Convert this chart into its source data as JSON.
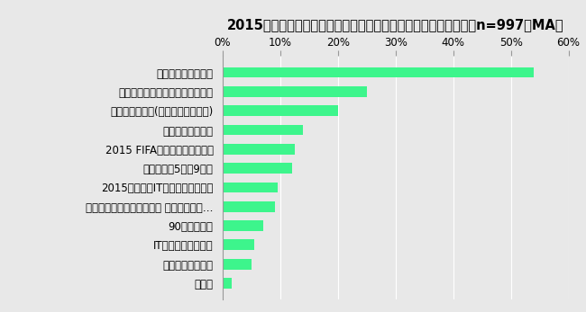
{
  "title": "2015年に話題になりそうなこと【文化・スポーツ・科学技術】（n=997、MA）",
  "categories": [
    "その他",
    "ミラノ国際博覧会",
    "ITヘルスケアブーム",
    "90年代ブーム",
    "「明治日本の産業革命遺産 九州・山口と…",
    "2015年問題（ITエンジニア不足）",
    "大型連休（5月、9月）",
    "2015 FIFA女子ワールドカップ",
    "ウェアラブル端末",
    "「自動」運転車(自動運転システム)",
    "北陸新幹線の長野～金沢間が開業",
    "エボラ出血熱の流行"
  ],
  "values": [
    1.5,
    5.0,
    5.5,
    7.0,
    9.0,
    9.5,
    12.0,
    12.5,
    14.0,
    20.0,
    25.0,
    54.0
  ],
  "bar_color": "#3DF58C",
  "background_color": "#E8E8E8",
  "plot_bg_color": "#E8E8E8",
  "title_fontsize": 10.5,
  "label_fontsize": 8.5,
  "tick_fontsize": 8.5,
  "xlim": [
    0,
    60
  ],
  "xticks": [
    0,
    10,
    20,
    30,
    40,
    50,
    60
  ],
  "xtick_labels": [
    "0%",
    "10%",
    "20%",
    "30%",
    "40%",
    "50%",
    "60%"
  ]
}
